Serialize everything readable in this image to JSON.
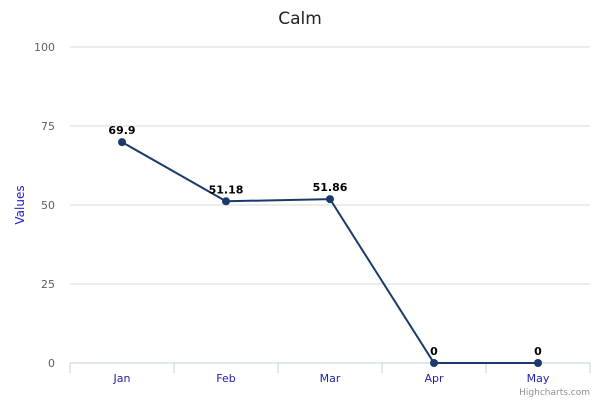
{
  "chart_data": {
    "type": "line",
    "title": "Calm",
    "xlabel": "",
    "ylabel": "Values",
    "categories": [
      "Jan",
      "Feb",
      "Mar",
      "Apr",
      "May"
    ],
    "series": [
      {
        "values": [
          69.9,
          51.18,
          51.86,
          0,
          0
        ],
        "data_labels": [
          "69.9",
          "51.18",
          "51.86",
          "0",
          "0"
        ]
      }
    ],
    "ylim": [
      0,
      100
    ],
    "yticks": [
      "0",
      "25",
      "50",
      "75",
      "100"
    ],
    "grid": true,
    "legend": "none",
    "colors": {
      "series": "#1b3a6b",
      "ylabel": "#2222cc",
      "xticks": "#2222aa"
    }
  },
  "credits": "Highcharts.com"
}
